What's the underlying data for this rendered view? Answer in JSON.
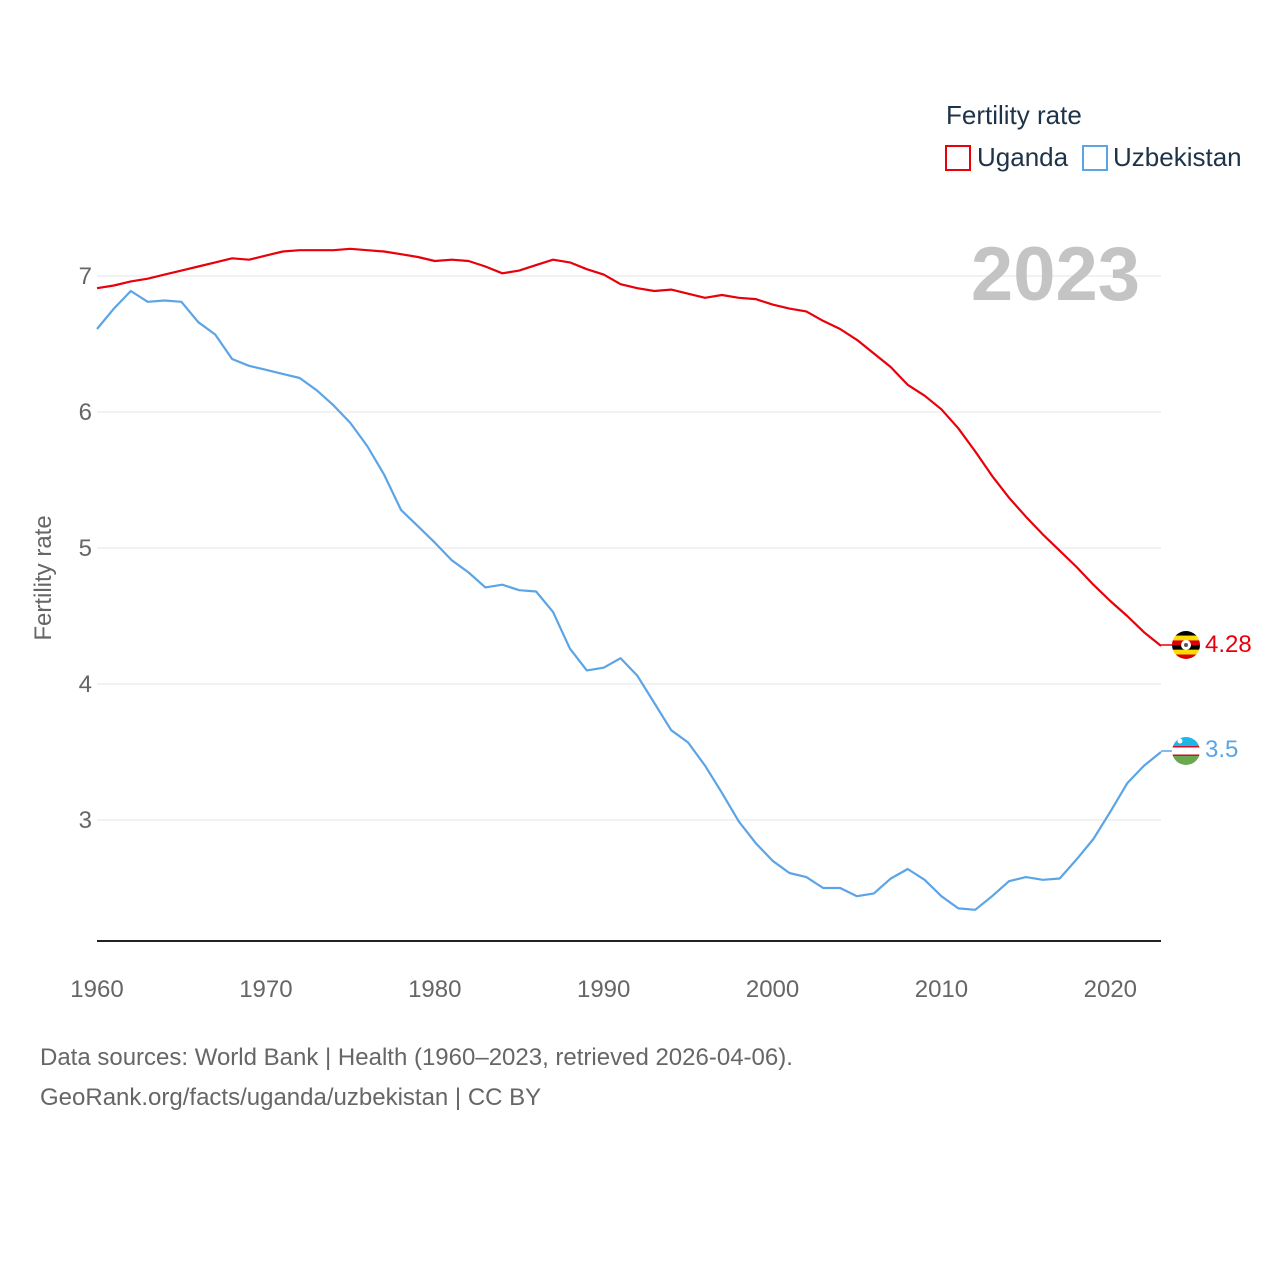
{
  "chart_data": {
    "type": "line",
    "title": "2023",
    "ylabel": "Fertility rate",
    "xlabel": "",
    "xlim": [
      1960,
      2023
    ],
    "ylim": [
      2.1,
      7.5
    ],
    "x_ticks": [
      1960,
      1970,
      1980,
      1990,
      2000,
      2010,
      2020
    ],
    "y_ticks": [
      3,
      4,
      5,
      6,
      7
    ],
    "legend": {
      "title": "Fertility rate",
      "position": "top-right"
    },
    "x": [
      1960,
      1961,
      1962,
      1963,
      1964,
      1965,
      1966,
      1967,
      1968,
      1969,
      1970,
      1971,
      1972,
      1973,
      1974,
      1975,
      1976,
      1977,
      1978,
      1979,
      1980,
      1981,
      1982,
      1983,
      1984,
      1985,
      1986,
      1987,
      1988,
      1989,
      1990,
      1991,
      1992,
      1993,
      1994,
      1995,
      1996,
      1997,
      1998,
      1999,
      2000,
      2001,
      2002,
      2003,
      2004,
      2005,
      2006,
      2007,
      2008,
      2009,
      2010,
      2011,
      2012,
      2013,
      2014,
      2015,
      2016,
      2017,
      2018,
      2019,
      2020,
      2021,
      2022,
      2023
    ],
    "series": [
      {
        "name": "Uganda",
        "color": "#e8000b",
        "end_label": "4.28",
        "values": [
          6.91,
          6.93,
          6.96,
          6.98,
          7.01,
          7.04,
          7.07,
          7.1,
          7.13,
          7.12,
          7.15,
          7.18,
          7.19,
          7.19,
          7.19,
          7.2,
          7.19,
          7.18,
          7.16,
          7.14,
          7.11,
          7.12,
          7.11,
          7.07,
          7.02,
          7.04,
          7.08,
          7.12,
          7.1,
          7.05,
          7.01,
          6.94,
          6.91,
          6.89,
          6.9,
          6.87,
          6.84,
          6.86,
          6.84,
          6.83,
          6.79,
          6.76,
          6.74,
          6.67,
          6.61,
          6.53,
          6.43,
          6.33,
          6.2,
          6.12,
          6.02,
          5.88,
          5.71,
          5.53,
          5.37,
          5.23,
          5.1,
          4.98,
          4.86,
          4.73,
          4.61,
          4.5,
          4.38,
          4.28
        ]
      },
      {
        "name": "Uzbekistan",
        "color": "#5ba4e6",
        "end_label": "3.5",
        "values": [
          6.61,
          6.76,
          6.89,
          6.81,
          6.82,
          6.81,
          6.66,
          6.57,
          6.39,
          6.34,
          6.31,
          6.28,
          6.25,
          6.16,
          6.05,
          5.92,
          5.75,
          5.54,
          5.28,
          5.16,
          5.04,
          4.91,
          4.82,
          4.71,
          4.73,
          4.69,
          4.68,
          4.53,
          4.26,
          4.1,
          4.12,
          4.19,
          4.06,
          3.86,
          3.66,
          3.57,
          3.4,
          3.2,
          2.99,
          2.83,
          2.7,
          2.61,
          2.58,
          2.5,
          2.5,
          2.44,
          2.46,
          2.57,
          2.64,
          2.56,
          2.44,
          2.35,
          2.34,
          2.44,
          2.55,
          2.58,
          2.56,
          2.57,
          2.71,
          2.86,
          3.06,
          3.27,
          3.4,
          3.5
        ]
      }
    ]
  },
  "footer": {
    "line1": "Data sources: World Bank | Health (1960–2023, retrieved 2026-04-06).",
    "line2": "GeoRank.org/facts/uganda/uzbekistan | CC BY"
  },
  "icons": [
    "uganda-flag-icon",
    "uzbekistan-flag-icon"
  ]
}
